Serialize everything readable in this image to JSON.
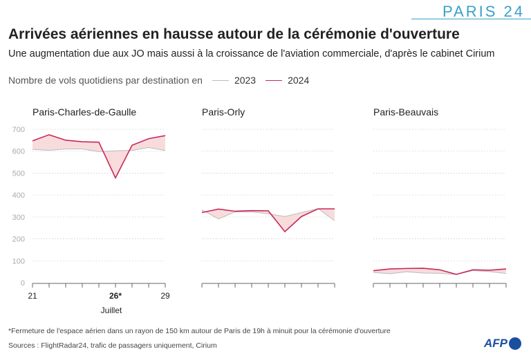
{
  "header": {
    "logo": "PARIS 24"
  },
  "title": "Arrivées aériennes en hausse autour de la cérémonie d'ouverture",
  "subtitle": "Une augmentation due aux JO mais aussi à la croissance de l'aviation commerciale, d'après le cabinet Cirium",
  "legend": {
    "label": "Nombre de vols quotidiens par destination en",
    "items": [
      {
        "name": "2023",
        "color": "#bbbbbb"
      },
      {
        "name": "2024",
        "color": "#c8285a"
      }
    ]
  },
  "colors": {
    "y2023": "#bbbbbb",
    "y2024": "#c8285a",
    "fill": "#f8dcdc",
    "grid": "#cccccc"
  },
  "footer": {
    "note": "*Fermeture de l'espace aérien dans un rayon de 150 km autour de Paris de 19h à minuit pour la cérémonie d'ouverture",
    "sources": "Sources : FlightRadar24, trafic de passagers uniquement, Cirium",
    "afp_logo": "AFP"
  },
  "chart_data": [
    {
      "type": "line",
      "title": "Paris-Charles-de-Gaulle",
      "x": [
        21,
        22,
        23,
        24,
        25,
        26,
        27,
        28,
        29
      ],
      "xticklabels": [
        "21",
        "26*",
        "29"
      ],
      "xlabel": "Juillet",
      "ylim": [
        0,
        700
      ],
      "yticks": [
        0,
        100,
        200,
        300,
        400,
        500,
        600,
        700
      ],
      "grid": true,
      "series": [
        {
          "name": "2023",
          "values": [
            608,
            604,
            610,
            610,
            598,
            602,
            604,
            617,
            603
          ]
        },
        {
          "name": "2024",
          "values": [
            647,
            675,
            650,
            643,
            641,
            478,
            627,
            657,
            671
          ]
        }
      ]
    },
    {
      "type": "line",
      "title": "Paris-Orly",
      "x": [
        21,
        22,
        23,
        24,
        25,
        26,
        27,
        28,
        29
      ],
      "ylim": [
        0,
        700
      ],
      "grid": true,
      "series": [
        {
          "name": "2023",
          "values": [
            333,
            291,
            323,
            323,
            315,
            302,
            320,
            338,
            283
          ]
        },
        {
          "name": "2024",
          "values": [
            320,
            336,
            326,
            329,
            328,
            233,
            302,
            337,
            337
          ]
        }
      ]
    },
    {
      "type": "line",
      "title": "Paris-Beauvais",
      "x": [
        21,
        22,
        23,
        24,
        25,
        26,
        27,
        28,
        29
      ],
      "ylim": [
        0,
        700
      ],
      "grid": true,
      "series": [
        {
          "name": "2023",
          "values": [
            47,
            41,
            50,
            44,
            43,
            38,
            55,
            51,
            42
          ]
        },
        {
          "name": "2024",
          "values": [
            55,
            63,
            65,
            66,
            59,
            38,
            59,
            57,
            63
          ]
        }
      ]
    }
  ]
}
